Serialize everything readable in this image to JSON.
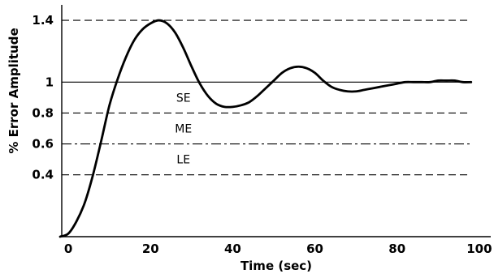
{
  "chart_data": {
    "type": "line",
    "xlabel": "Time (sec)",
    "ylabel": "% Error Amplitude",
    "xlim": [
      -2,
      102
    ],
    "ylim": [
      0,
      1.5
    ],
    "x_ticks": [
      0,
      20,
      40,
      60,
      80,
      100
    ],
    "y_tick_labels": [
      {
        "value": 1.4,
        "label": "1.4"
      },
      {
        "value": 1.0,
        "label": "1"
      },
      {
        "value": 0.8,
        "label": "0.8"
      },
      {
        "value": 0.6,
        "label": "0.6"
      },
      {
        "value": 0.4,
        "label": "0.4"
      }
    ],
    "reference_lines": [
      {
        "y": 1.4,
        "style": "dashed"
      },
      {
        "y": 1.0,
        "style": "solid"
      },
      {
        "y": 0.8,
        "style": "dashed"
      },
      {
        "y": 0.6,
        "style": "dash-dot"
      },
      {
        "y": 0.4,
        "style": "dashed"
      }
    ],
    "zone_labels": [
      {
        "text": "SE",
        "x": 28,
        "y": 0.9
      },
      {
        "text": "ME",
        "x": 28,
        "y": 0.7
      },
      {
        "text": "LE",
        "x": 28,
        "y": 0.5
      }
    ],
    "series": [
      {
        "x": [
          -2,
          0,
          2,
          4,
          6,
          8,
          10,
          12,
          14,
          16,
          18,
          20,
          22,
          24,
          26,
          28,
          30,
          32,
          34,
          36,
          38,
          40,
          42,
          44,
          46,
          48,
          50,
          52,
          54,
          56,
          58,
          60,
          62,
          64,
          66,
          68,
          70,
          72,
          74,
          76,
          78,
          80,
          82,
          84,
          86,
          88,
          90,
          92,
          94,
          96,
          98
        ],
        "y": [
          0.0,
          0.02,
          0.1,
          0.22,
          0.4,
          0.62,
          0.85,
          1.02,
          1.16,
          1.27,
          1.34,
          1.38,
          1.4,
          1.38,
          1.32,
          1.22,
          1.1,
          0.99,
          0.91,
          0.86,
          0.84,
          0.84,
          0.85,
          0.87,
          0.91,
          0.96,
          1.01,
          1.06,
          1.09,
          1.1,
          1.09,
          1.06,
          1.01,
          0.97,
          0.95,
          0.94,
          0.94,
          0.95,
          0.96,
          0.97,
          0.98,
          0.99,
          1.0,
          1.0,
          1.0,
          1.0,
          1.01,
          1.01,
          1.01,
          1.0,
          1.0
        ]
      }
    ],
    "colors": {
      "line": "#000000",
      "axes": "#000000",
      "background": "#ffffff"
    }
  }
}
